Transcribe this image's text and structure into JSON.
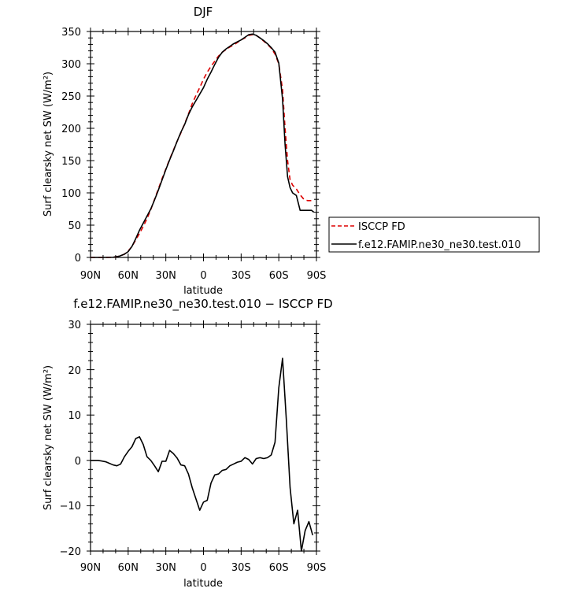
{
  "chart_data": [
    {
      "type": "line",
      "title": "DJF",
      "xlabel": "latitude",
      "ylabel": "Surf clearsky net SW (W/m²)",
      "xlim": [
        -90,
        90
      ],
      "ylim": [
        0,
        350
      ],
      "x_tick_labels": [
        "90N",
        "60N",
        "30N",
        "0",
        "30S",
        "60S",
        "90S"
      ],
      "y_tick_labels": [
        "0",
        "50",
        "100",
        "150",
        "200",
        "250",
        "300",
        "350"
      ],
      "legend_position": "right",
      "series": [
        {
          "name": "ISCCP FD",
          "color": "#dd0000",
          "dash": "dashed",
          "x": [
            -90,
            -80,
            -72,
            -67,
            -63,
            -60,
            -57,
            -54,
            -51,
            -48,
            -45,
            -42,
            -39,
            -36,
            -33,
            -30,
            -27,
            -24,
            -21,
            -18,
            -15,
            -12,
            -9,
            -6,
            -3,
            0,
            3,
            6,
            9,
            12,
            15,
            18,
            21,
            24,
            27,
            30,
            33,
            36,
            39,
            42,
            45,
            48,
            51,
            54,
            57,
            60,
            63,
            65,
            67,
            69,
            71,
            74,
            77,
            80,
            83,
            86,
            88
          ],
          "values": [
            0,
            0,
            0.3,
            2,
            5,
            10,
            17,
            27,
            37,
            48,
            60,
            74,
            90,
            106,
            122,
            137,
            152,
            166,
            180,
            193,
            207,
            222,
            238,
            251,
            263,
            276,
            287,
            296,
            304,
            312,
            318,
            322,
            326,
            329,
            333,
            337,
            340,
            344,
            345,
            344,
            340,
            335,
            330,
            324,
            315,
            300,
            260,
            200,
            150,
            120,
            112,
            106,
            97,
            90,
            88,
            88,
            87
          ]
        },
        {
          "name": "f.e12.FAMIP.ne30_ne30.test.010",
          "color": "#000000",
          "dash": "solid",
          "x": [
            -90,
            -80,
            -72,
            -67,
            -63,
            -60,
            -57,
            -54,
            -51,
            -48,
            -45,
            -42,
            -39,
            -36,
            -33,
            -30,
            -27,
            -24,
            -21,
            -18,
            -15,
            -12,
            -9,
            -6,
            -3,
            0,
            3,
            6,
            9,
            12,
            15,
            18,
            21,
            24,
            27,
            30,
            33,
            36,
            39,
            42,
            45,
            48,
            51,
            54,
            57,
            60,
            63,
            65,
            67,
            69,
            71,
            74,
            77,
            80,
            83,
            86,
            88
          ],
          "values": [
            0,
            0,
            0.3,
            2,
            5,
            9,
            17,
            29,
            42,
            53,
            64,
            75,
            89,
            104,
            120,
            136,
            151,
            165,
            180,
            194,
            206,
            221,
            233,
            243,
            253,
            263,
            276,
            287,
            299,
            310,
            318,
            323,
            327,
            331,
            334,
            337,
            341,
            345,
            346,
            344,
            340,
            336,
            331,
            325,
            318,
            301,
            245,
            175,
            125,
            108,
            100,
            96,
            73,
            73,
            73,
            73,
            70
          ]
        }
      ]
    },
    {
      "type": "line",
      "title": "f.e12.FAMIP.ne30_ne30.test.010 − ISCCP FD",
      "xlabel": "latitude",
      "ylabel": "Surf clearsky net SW (W/m²)",
      "xlim": [
        -90,
        90
      ],
      "ylim": [
        -20,
        30
      ],
      "x_tick_labels": [
        "90N",
        "60N",
        "30N",
        "0",
        "30S",
        "60S",
        "90S"
      ],
      "y_tick_labels": [
        "−20",
        "−10",
        "0",
        "10",
        "20",
        "30"
      ],
      "series": [
        {
          "color": "#000000",
          "dash": "solid",
          "x": [
            -90,
            -84,
            -78,
            -72,
            -69,
            -66,
            -63,
            -60,
            -57,
            -54,
            -51,
            -48,
            -45,
            -42,
            -39,
            -36,
            -33,
            -30,
            -27,
            -24,
            -21,
            -18,
            -15,
            -12,
            -9,
            -6,
            -3,
            0,
            3,
            6,
            9,
            12,
            15,
            18,
            21,
            24,
            27,
            30,
            33,
            36,
            39,
            42,
            45,
            48,
            51,
            54,
            57,
            60,
            63,
            66,
            69,
            72,
            75,
            78,
            81,
            84,
            87
          ],
          "values": [
            0,
            0,
            -0.3,
            -1,
            -1.2,
            -0.8,
            0.8,
            2,
            3,
            4.8,
            5.2,
            3.5,
            0.8,
            0,
            -1.2,
            -2.5,
            -0.2,
            -0.2,
            2.2,
            1.5,
            0.5,
            -1.0,
            -1.2,
            -3,
            -6,
            -8.5,
            -11,
            -9.2,
            -8.8,
            -5,
            -3.2,
            -3,
            -2.2,
            -2.0,
            -1.2,
            -0.8,
            -0.4,
            -0.2,
            0.6,
            0.2,
            -0.8,
            0.4,
            0.6,
            0.4,
            0.6,
            1.2,
            4,
            16,
            22.5,
            9,
            -6,
            -14,
            -11,
            -20,
            -15.5,
            -13.5,
            -16.5
          ]
        }
      ]
    }
  ]
}
